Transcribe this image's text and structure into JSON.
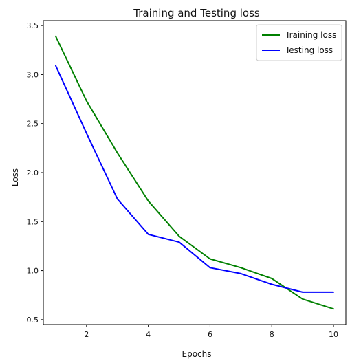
{
  "chart_data": {
    "type": "line",
    "title": "Training and Testing loss",
    "xlabel": "Epochs",
    "ylabel": "Loss",
    "xlim": [
      0.6,
      10.4
    ],
    "ylim": [
      0.45,
      3.55
    ],
    "xticks": [
      2,
      4,
      6,
      8,
      10
    ],
    "yticks": [
      0.5,
      1.0,
      1.5,
      2.0,
      2.5,
      3.0,
      3.5
    ],
    "grid": false,
    "legend_position": "top-right",
    "x": [
      1,
      2,
      3,
      4,
      5,
      6,
      7,
      8,
      9,
      10
    ],
    "series": [
      {
        "name": "Training loss",
        "color": "#008000",
        "values": [
          3.39,
          2.73,
          2.2,
          1.71,
          1.35,
          1.12,
          1.03,
          0.92,
          0.71,
          0.61
        ]
      },
      {
        "name": "Testing loss",
        "color": "#0000ff",
        "values": [
          3.09,
          2.4,
          1.73,
          1.37,
          1.29,
          1.03,
          0.97,
          0.86,
          0.78,
          0.78
        ]
      }
    ]
  }
}
